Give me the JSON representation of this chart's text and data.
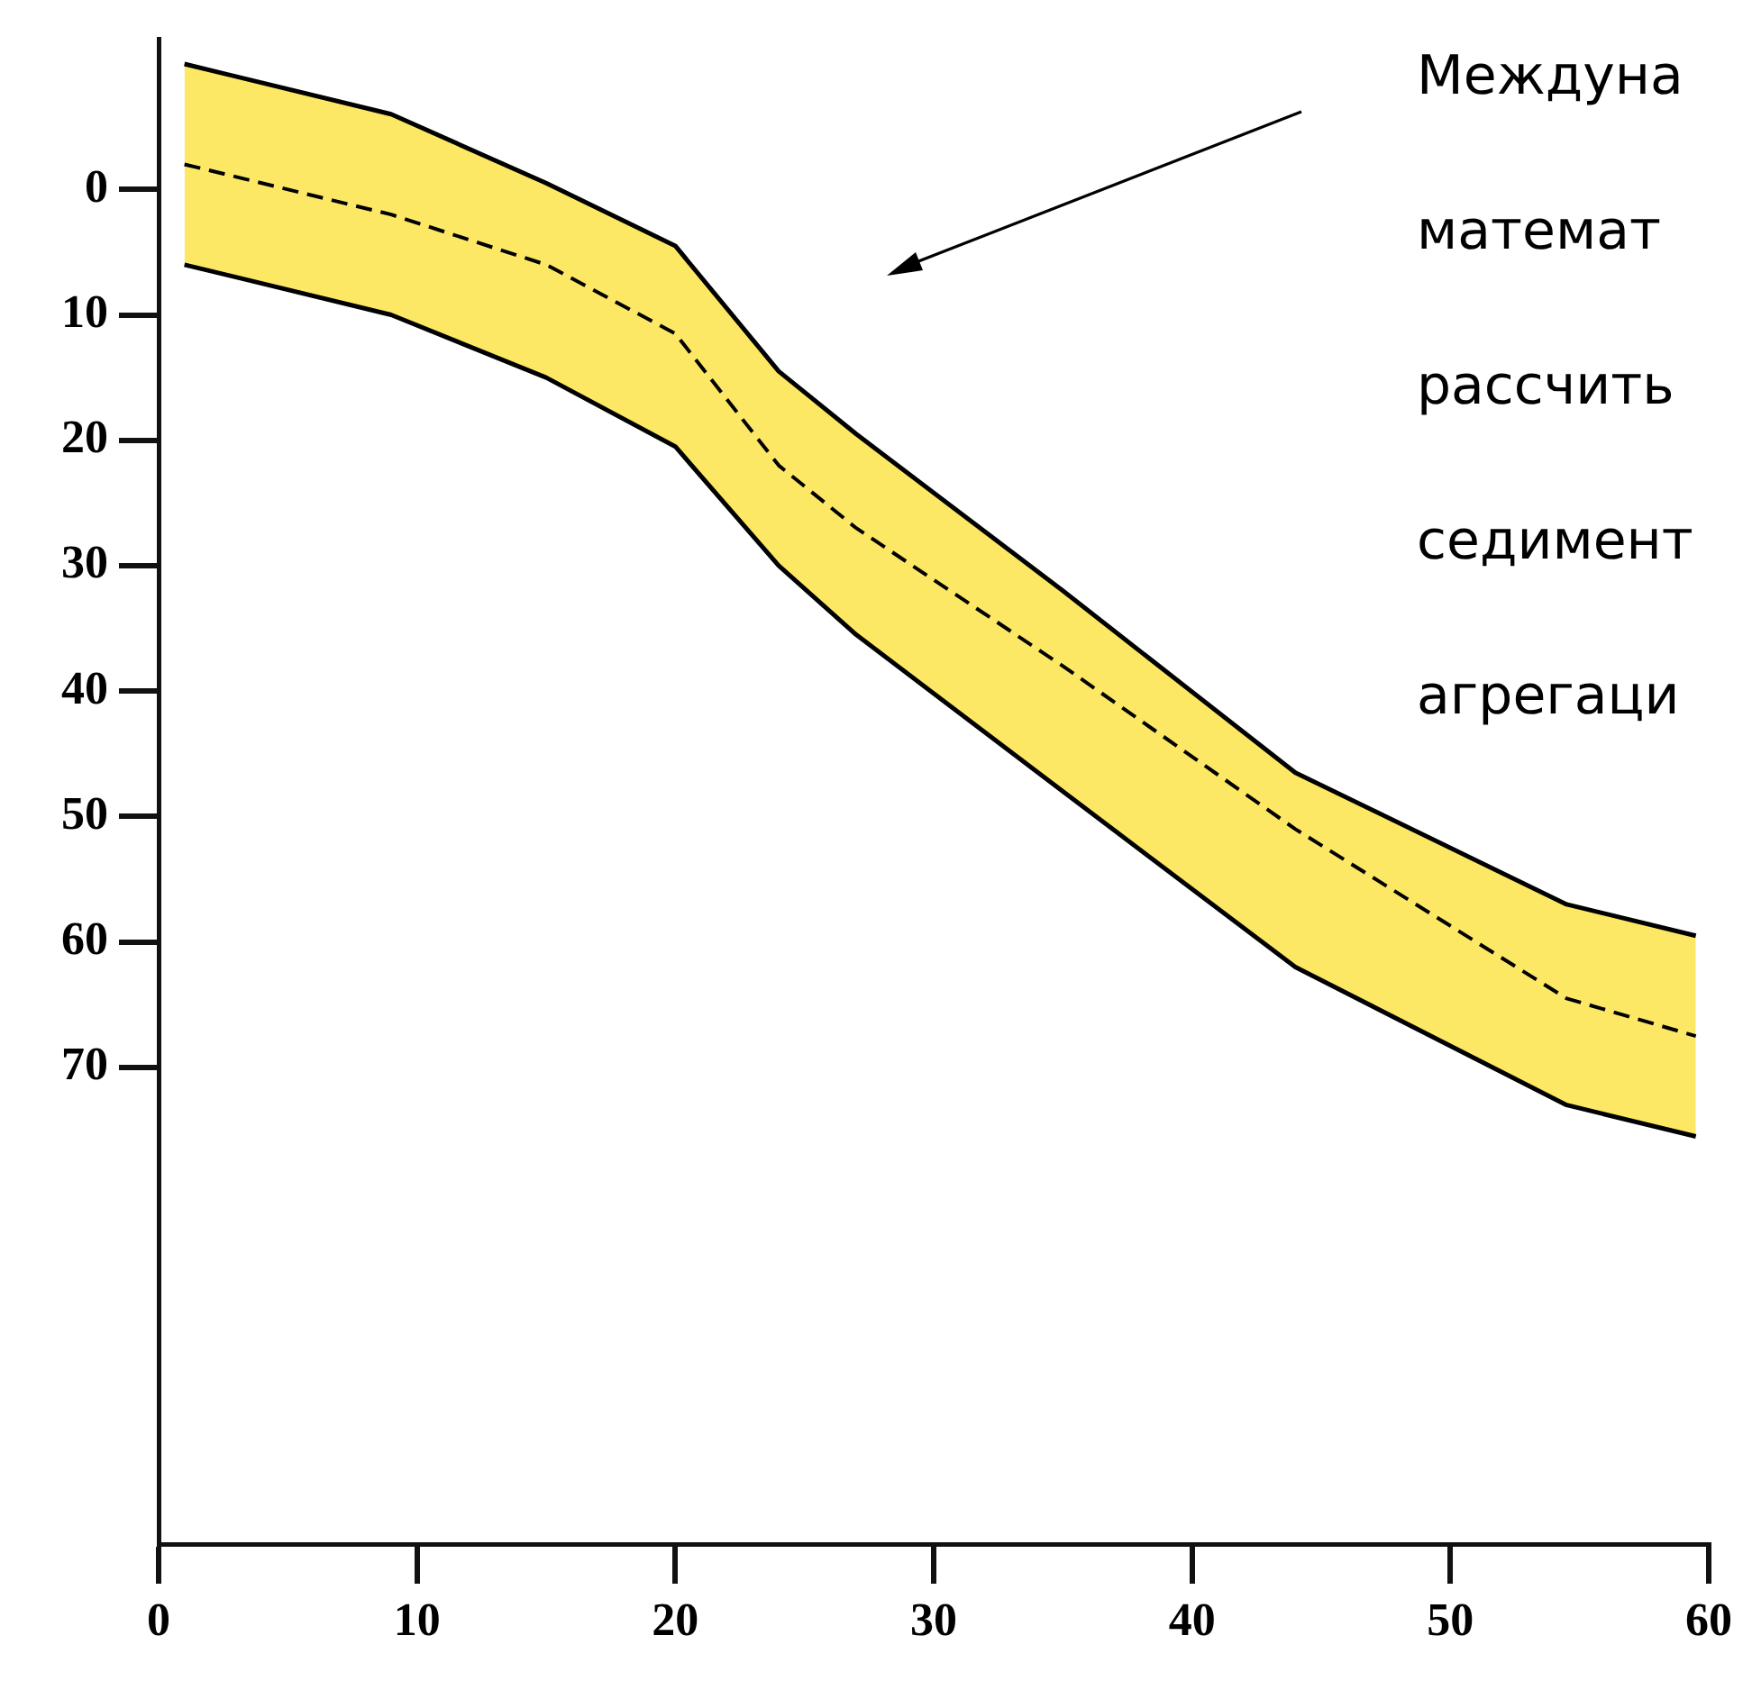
{
  "chart_data": {
    "type": "line",
    "x": [
      1,
      9,
      15,
      20,
      24,
      27,
      35,
      44,
      54.5,
      59.5
    ],
    "series": [
      {
        "color": "#000000",
        "line_style": "dashed",
        "values": [
          -2,
          2,
          6,
          11.5,
          22,
          27,
          38,
          51,
          64.5,
          67.5
        ],
        "lower": [
          6,
          10,
          15,
          20.5,
          30,
          35.5,
          48,
          62,
          73,
          75.5
        ],
        "upper": [
          -10,
          -6,
          -0.5,
          4.5,
          14.5,
          19.5,
          32,
          46.5,
          57,
          59.5
        ]
      },
      {
        "color": "#000000",
        "line_style": "solid",
        "values": [
          -10,
          -6,
          -0.5,
          4.5,
          14.5,
          19.5,
          32,
          46.5,
          57,
          59.5
        ]
      },
      {
        "color": "#000000",
        "line_style": "solid",
        "values": [
          6,
          10,
          15,
          20.5,
          30,
          35.5,
          48,
          62,
          73,
          75.5
        ]
      }
    ],
    "xlim": [
      0,
      60
    ],
    "xticks": [
      0,
      10,
      20,
      30,
      40,
      50,
      60
    ],
    "ylim": [
      108,
      -12
    ],
    "yticks": [
      0,
      10,
      20,
      30,
      40,
      50,
      60,
      70
    ],
    "grid": false,
    "legend": false,
    "marker": "none",
    "annotations": [
      "Междуна",
      "математ",
      "рассчить",
      "седимент",
      "агрегаци"
    ]
  }
}
